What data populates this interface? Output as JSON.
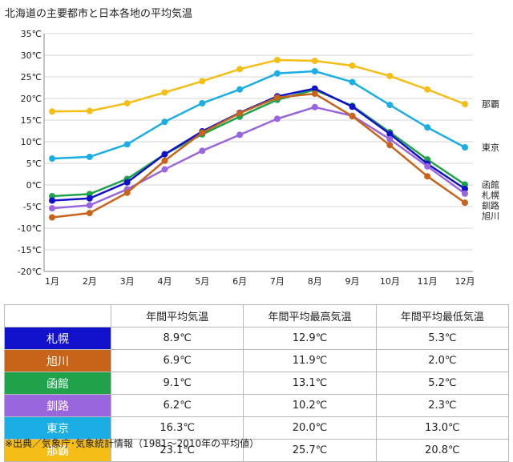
{
  "chart_data": {
    "type": "line",
    "title": "北海道の主要都市と日本各地の平均気温",
    "categories": [
      "1月",
      "2月",
      "3月",
      "4月",
      "5月",
      "6月",
      "7月",
      "8月",
      "9月",
      "10月",
      "11月",
      "12月"
    ],
    "y_ticks": [
      "35℃",
      "30℃",
      "25℃",
      "20℃",
      "15℃",
      "10℃",
      "5℃",
      "0℃",
      "-5℃",
      "-10℃",
      "-15℃",
      "-20℃"
    ],
    "ylim": [
      -20,
      35
    ],
    "grid": true,
    "series": [
      {
        "name": "那覇",
        "color": "#f5be16",
        "values": [
          17.0,
          17.1,
          18.9,
          21.4,
          24.0,
          26.8,
          28.9,
          28.7,
          27.6,
          25.2,
          22.1,
          18.7
        ]
      },
      {
        "name": "東京",
        "color": "#1aaee5",
        "values": [
          6.1,
          6.5,
          9.4,
          14.6,
          18.9,
          22.1,
          25.8,
          26.3,
          23.8,
          18.5,
          13.3,
          8.7
        ]
      },
      {
        "name": "函館",
        "color": "#1fa24a",
        "values": [
          -2.6,
          -2.1,
          1.4,
          7.1,
          11.7,
          15.8,
          19.7,
          22.0,
          18.3,
          12.2,
          5.9,
          0.1
        ]
      },
      {
        "name": "札幌",
        "color": "#1212cc",
        "values": [
          -3.6,
          -3.1,
          0.6,
          7.1,
          12.4,
          16.7,
          20.5,
          22.3,
          18.1,
          11.8,
          4.9,
          -0.9
        ]
      },
      {
        "name": "釧路",
        "color": "#9966dd",
        "values": [
          -5.4,
          -4.7,
          -1.0,
          3.6,
          7.9,
          11.6,
          15.3,
          18.0,
          16.0,
          10.6,
          4.3,
          -2.0
        ]
      },
      {
        "name": "旭川",
        "color": "#c8641a",
        "values": [
          -7.5,
          -6.5,
          -1.8,
          5.6,
          12.1,
          16.6,
          20.2,
          21.1,
          15.9,
          9.2,
          2.0,
          -4.1
        ]
      }
    ],
    "legend_labels": [
      "那覇",
      "東京",
      "函館",
      "札幌",
      "釧路",
      "旭川"
    ]
  },
  "table": {
    "headers": [
      "年間平均気温",
      "年間平均最高気温",
      "年間平均最低気温"
    ],
    "rows": [
      {
        "city": "札幌",
        "color": "#1212cc",
        "avg": "8.9℃",
        "max": "12.9℃",
        "min": "5.3℃"
      },
      {
        "city": "旭川",
        "color": "#c8641a",
        "avg": "6.9℃",
        "max": "11.9℃",
        "min": "2.0℃"
      },
      {
        "city": "函館",
        "color": "#1fa24a",
        "avg": "9.1℃",
        "max": "13.1℃",
        "min": "5.2℃"
      },
      {
        "city": "釧路",
        "color": "#9966dd",
        "avg": "6.2℃",
        "max": "10.2℃",
        "min": "2.3℃"
      },
      {
        "city": "東京",
        "color": "#1aaee5",
        "avg": "16.3℃",
        "max": "20.0℃",
        "min": "13.0℃"
      },
      {
        "city": "那覇",
        "color": "#f5be16",
        "avg": "23.1℃",
        "max": "25.7℃",
        "min": "20.8℃"
      }
    ]
  },
  "footnote": "※出典／気象庁･気象統計情報（1981～2010年の平均値）"
}
